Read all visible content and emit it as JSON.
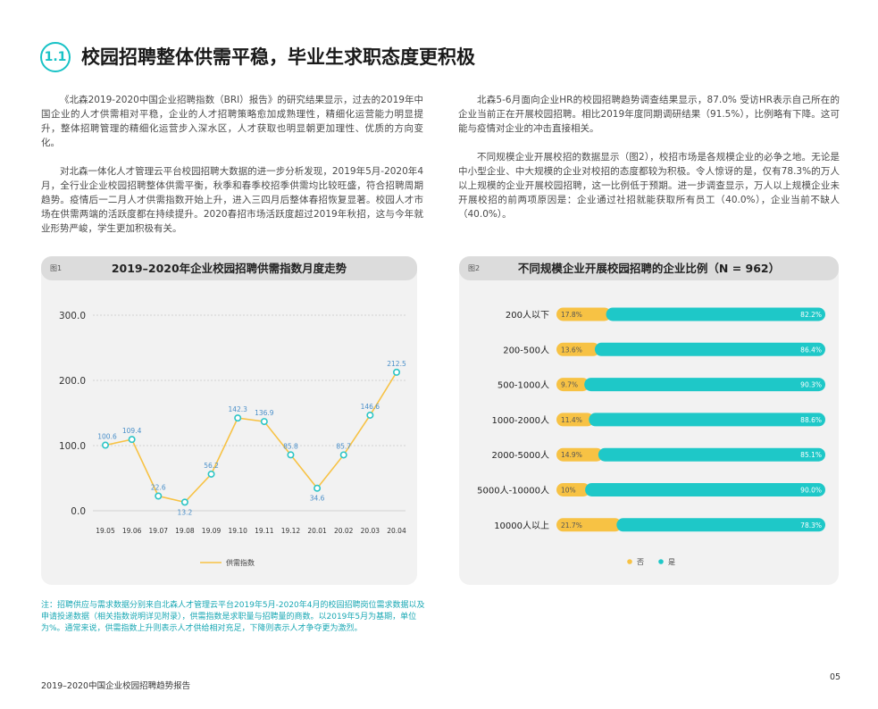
{
  "section": {
    "number": "1.1",
    "title": "校园招聘整体供需平稳，毕业生求职态度更积极"
  },
  "body": {
    "left_paragraphs": [
      "《北森2019-2020中国企业招聘指数（BRI）报告》的研究结果显示，过去的2019年中国企业的人才供需相对平稳，企业的人才招聘策略愈加成熟理性，精细化运营能力明显提升，整体招聘管理的精细化运营步入深水区，人才获取也明显朝更加理性、优质的方向变化。",
      "对北森一体化人才管理云平台校园招聘大数据的进一步分析发现，2019年5月-2020年4月，全行业企业校园招聘整体供需平衡，秋季和春季校招季供需均比较旺盛，符合招聘周期趋势。疫情后一二月人才供需指数开始上升，进入三四月后整体春招恢复显著。校园人才市场在供需两端的活跃度都在持续提升。2020春招市场活跃度超过2019年秋招，这与今年就业形势严峻，学生更加积极有关。"
    ],
    "right_paragraphs": [
      "北森5-6月面向企业HR的校园招聘趋势调查结果显示，87.0% 受访HR表示自己所在的企业当前正在开展校园招聘。相比2019年度同期调研结果（91.5%），比例略有下降。这可能与疫情对企业的冲击直接相关。",
      "不同规模企业开展校招的数据显示（图2），校招市场是各规模企业的必争之地。无论是中小型企业、中大规模的企业对校招的态度都较为积极。令人惊讶的是，仅有78.3%的万人以上规模的企业开展校园招聘，这一比例低于预期。进一步调查显示，万人以上规模企业未开展校招的前两项原因是：企业通过社招就能获取所有员工（40.0%），企业当前不缺人（40.0%）。"
    ]
  },
  "figure1": {
    "tag": "图1",
    "title": "2019–2020年企业校园招聘供需指数月度走势"
  },
  "figure2": {
    "tag": "图2",
    "title": "不同规模企业开展校园招聘的企业比例（N = 962）"
  },
  "chart_data": [
    {
      "type": "line",
      "title": "2019–2020年企业校园招聘供需指数月度走势",
      "categories": [
        "19.05",
        "19.06",
        "19.07",
        "19.08",
        "19.09",
        "19.10",
        "19.11",
        "19.12",
        "20.01",
        "20.02",
        "20.03",
        "20.04"
      ],
      "series": [
        {
          "name": "供需指数",
          "values": [
            100.6,
            109.4,
            22.6,
            13.2,
            56.2,
            142.3,
            136.9,
            85.8,
            34.6,
            85.7,
            146.6,
            212.5
          ]
        }
      ],
      "yticks": [
        "0.0",
        "100.0",
        "200.0",
        "300.0"
      ],
      "ylim": [
        0,
        300
      ],
      "grid": true,
      "legend": "bottom",
      "colors": {
        "line": "#f7c244",
        "marker": "#2cc5c6",
        "label": "#4a8fc9"
      }
    },
    {
      "type": "bar",
      "stacked": true,
      "orientation": "horizontal",
      "title": "不同规模企业开展校园招聘的企业比例（N = 962）",
      "categories": [
        "200人以下",
        "200-500人",
        "500-1000人",
        "1000-2000人",
        "2000-5000人",
        "5000人-10000人",
        "10000人以上"
      ],
      "series": [
        {
          "name": "否",
          "values": [
            17.8,
            13.6,
            9.7,
            11.4,
            14.9,
            10,
            21.7
          ],
          "labels": [
            "17.8%",
            "13.6%",
            "9.7%",
            "11.4%",
            "14.9%",
            "10%",
            "21.7%"
          ],
          "color": "#f7c244"
        },
        {
          "name": "是",
          "values": [
            82.2,
            86.4,
            90.3,
            88.6,
            85.1,
            90.0,
            78.3
          ],
          "labels": [
            "82.2%",
            "86.4%",
            "90.3%",
            "88.6%",
            "85.1%",
            "90.0%",
            "78.3%"
          ],
          "color": "#1ec8c8"
        }
      ],
      "xlim": [
        0,
        100
      ],
      "legend": "bottom"
    }
  ],
  "note": "注：招聘供应与需求数据分别来自北森人才管理云平台2019年5月-2020年4月的校园招聘岗位需求数据以及申请投递数据（相关指数说明详见附录），供需指数是求职量与招聘量的商数。以2019年5月为基期，单位为%。通常来说，供需指数上升则表示人才供给相对充足，下降则表示人才争夺更为激烈。",
  "footer": {
    "report_title": "2019–2020中国企业校园招聘趋势报告",
    "page_number": "05"
  },
  "colors": {
    "accent": "#17c2c6",
    "note_text": "#1aa8b4",
    "panel_bg": "#f2f2f2",
    "panel_header": "#dcdcdc"
  }
}
